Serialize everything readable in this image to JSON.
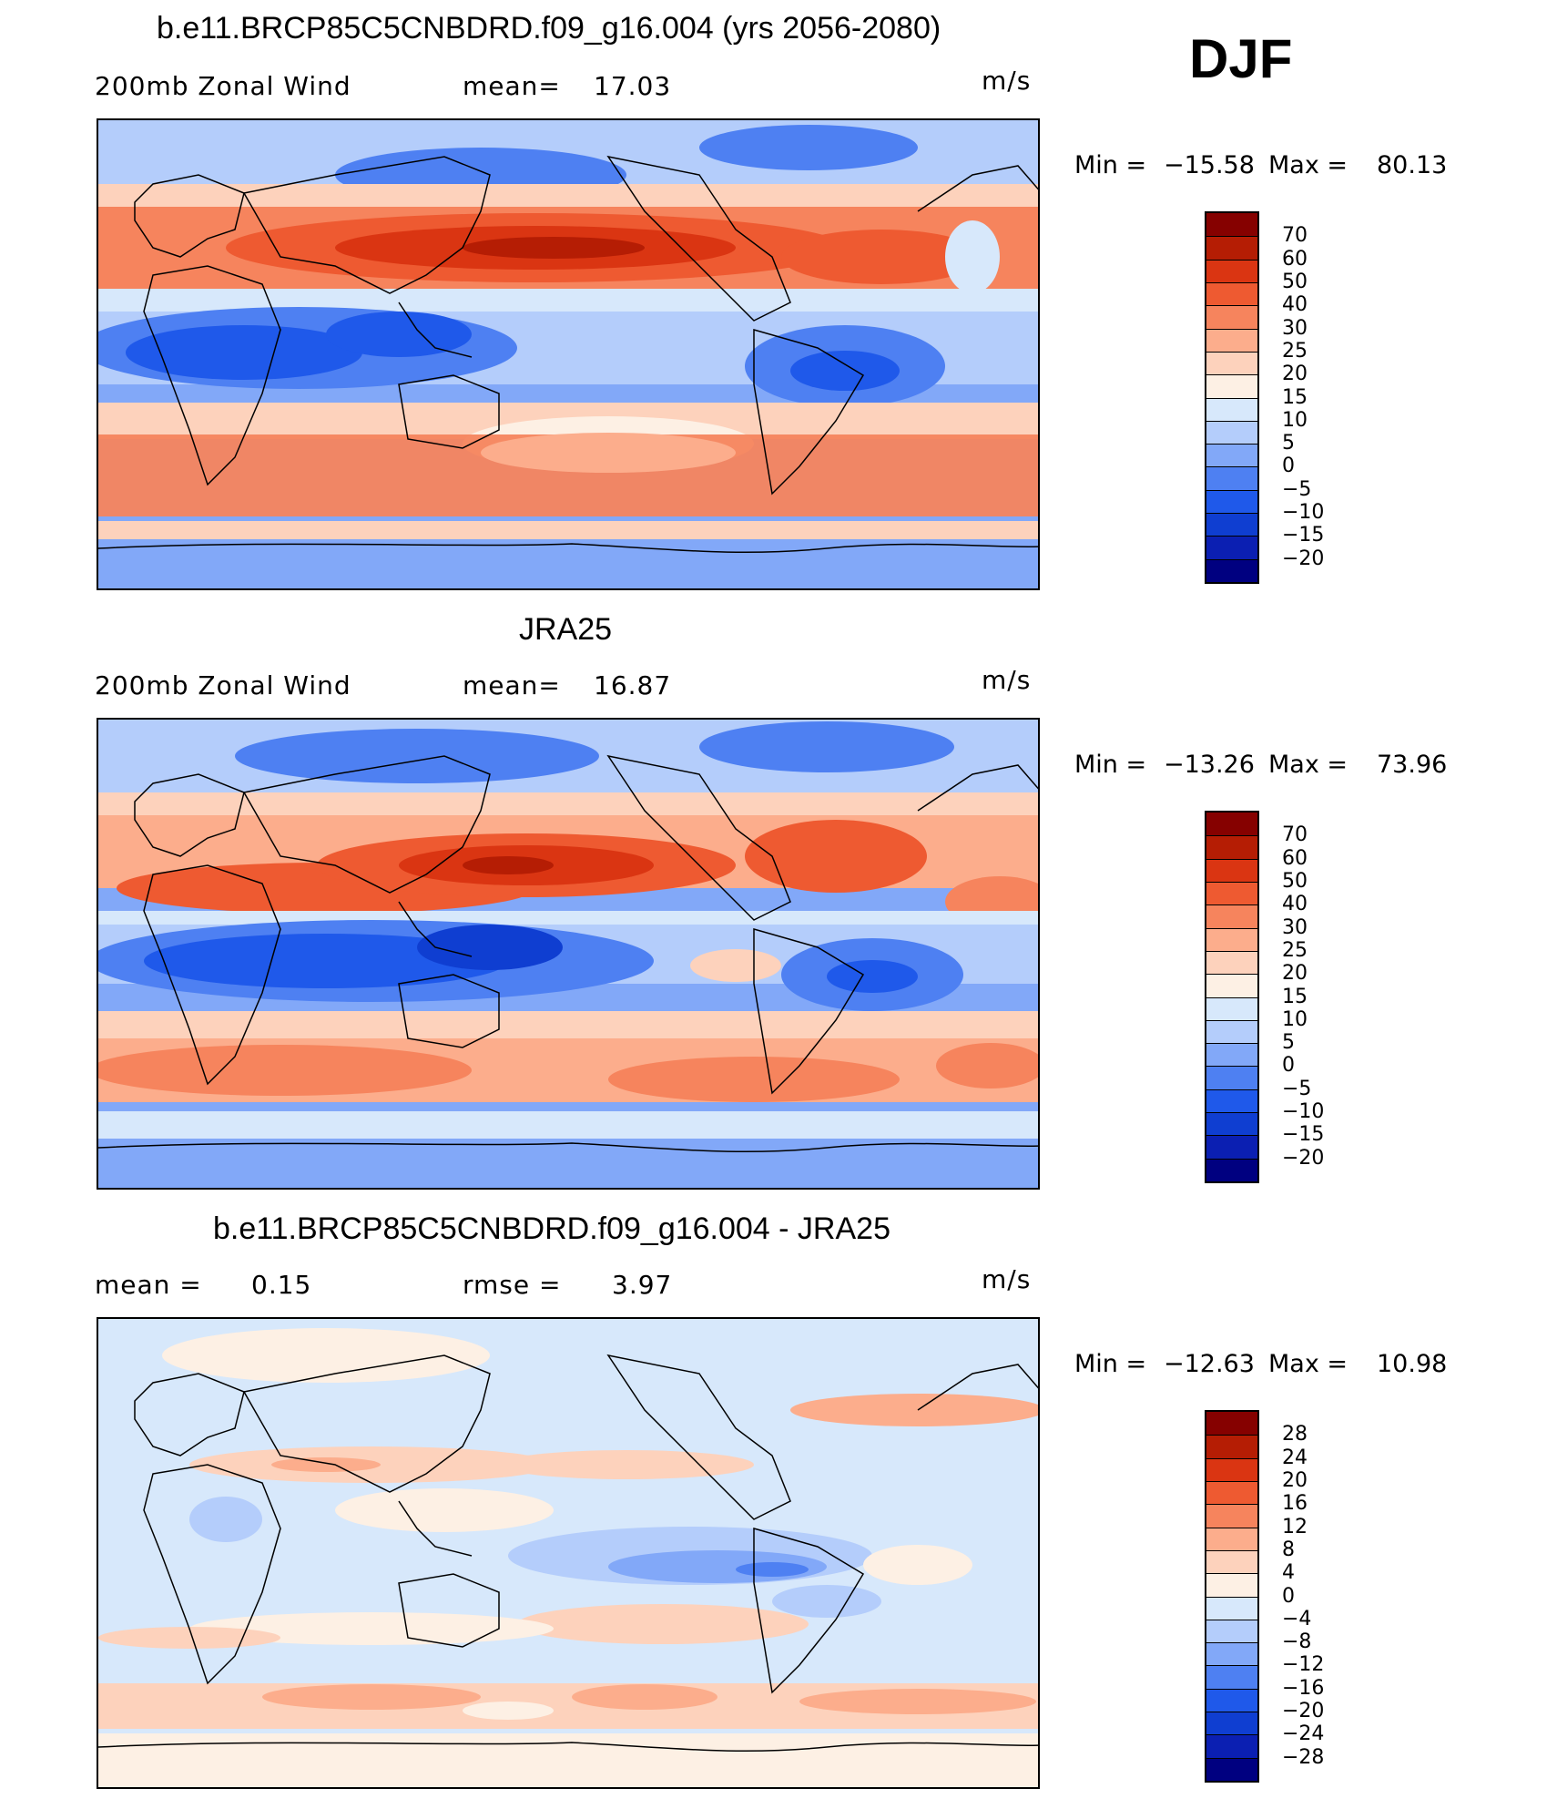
{
  "season_label": "DJF",
  "colors": {
    "abs": [
      "#000080",
      "#0b1fb2",
      "#0f3ed1",
      "#1f59ea",
      "#4e80f2",
      "#82a8f8",
      "#b4cdfb",
      "#d7e8fb",
      "#fdf0e4",
      "#fdd2bc",
      "#fcad8c",
      "#f6845d",
      "#ee5a31",
      "#da3512",
      "#b51d04",
      "#860100"
    ],
    "diff": [
      "#000080",
      "#0b1fb2",
      "#0f3ed1",
      "#1f59ea",
      "#4e80f2",
      "#82a8f8",
      "#b4cdfb",
      "#d7e8fb",
      "#fdf0e4",
      "#fdd2bc",
      "#fcad8c",
      "#f6845d",
      "#ee5a31",
      "#da3512",
      "#b51d04",
      "#860100"
    ]
  },
  "panels": [
    {
      "title": "b.e11.BRCP85C5CNBDRD.f09_g16.004 (yrs 2056-2080)",
      "left_label": "200mb  Zonal  Wind",
      "center_label": "mean=",
      "center_value": "17.03",
      "units": "m/s",
      "min_label": "Min  =",
      "min_value": "−15.58",
      "max_label": "Max  =",
      "max_value": "80.13",
      "ticks": [
        "70",
        "60",
        "50",
        "40",
        "30",
        "25",
        "20",
        "15",
        "10",
        "5",
        "0",
        "−5",
        "−10",
        "−15",
        "−20"
      ],
      "colorbar": "abs"
    },
    {
      "title": "JRA25",
      "left_label": "200mb  Zonal  Wind",
      "center_label": "mean=",
      "center_value": "16.87",
      "units": "m/s",
      "min_label": "Min  =",
      "min_value": "−13.26",
      "max_label": "Max  =",
      "max_value": "73.96",
      "ticks": [
        "70",
        "60",
        "50",
        "40",
        "30",
        "25",
        "20",
        "15",
        "10",
        "5",
        "0",
        "−5",
        "−10",
        "−15",
        "−20"
      ],
      "colorbar": "abs"
    },
    {
      "title": "b.e11.BRCP85C5CNBDRD.f09_g16.004 - JRA25",
      "left_label": "mean  =",
      "left_value": "0.15",
      "center_label": "rmse  =",
      "center_value": "3.97",
      "units": "m/s",
      "min_label": "Min  =",
      "min_value": "−12.63",
      "max_label": "Max  =",
      "max_value": "10.98",
      "ticks": [
        "28",
        "24",
        "20",
        "16",
        "12",
        "8",
        "4",
        "0",
        "−4",
        "−8",
        "−12",
        "−16",
        "−20",
        "−24",
        "−28"
      ],
      "colorbar": "diff"
    }
  ]
}
